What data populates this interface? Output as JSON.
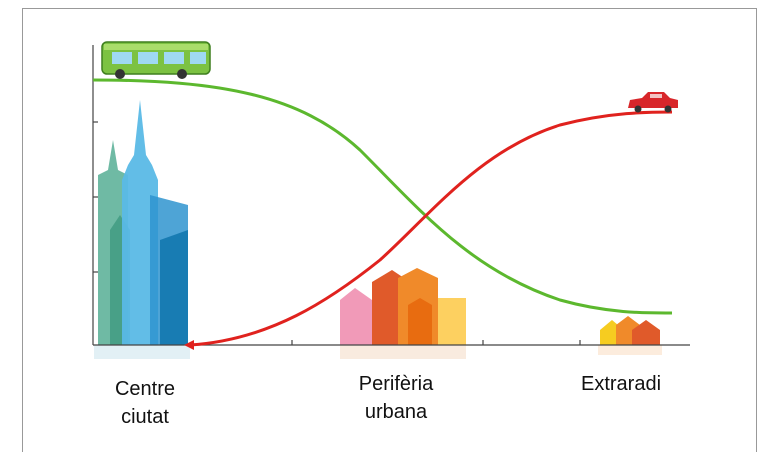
{
  "labels": [
    {
      "lines": [
        "Centre",
        "ciutat"
      ]
    },
    {
      "lines": [
        "Perifèria",
        "urbana"
      ]
    },
    {
      "lines": [
        "Extraradi"
      ]
    }
  ]
}
